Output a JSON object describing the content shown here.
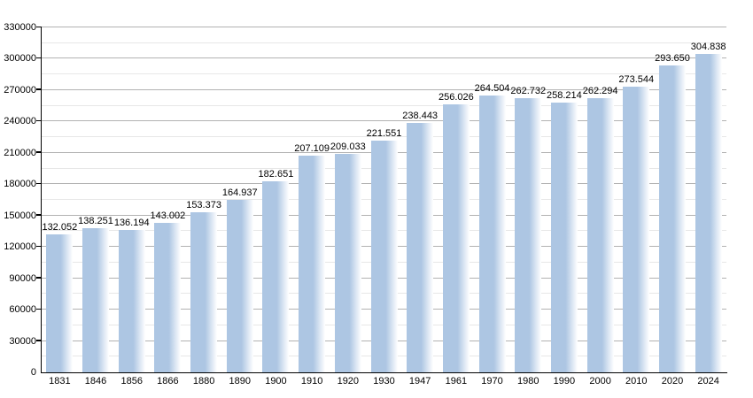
{
  "chart_data": {
    "type": "bar",
    "title": "",
    "xlabel": "",
    "ylabel": "",
    "categories": [
      "1831",
      "1846",
      "1856",
      "1866",
      "1880",
      "1890",
      "1900",
      "1910",
      "1920",
      "1930",
      "1947",
      "1961",
      "1970",
      "1980",
      "1990",
      "2000",
      "2010",
      "2020",
      "2024"
    ],
    "values": [
      132052,
      138251,
      136194,
      143002,
      153373,
      164937,
      182651,
      207109,
      209033,
      221551,
      238443,
      256026,
      264504,
      262732,
      258214,
      262294,
      273544,
      293650,
      304838
    ],
    "value_labels": [
      "132.052",
      "138.251",
      "136.194",
      "143.002",
      "153.373",
      "164.937",
      "182.651",
      "207.109",
      "209.033",
      "221.551",
      "238.443",
      "256.026",
      "264.504",
      "262.732",
      "258.214",
      "262.294",
      "273.544",
      "293.650",
      "304.838"
    ],
    "ylim": [
      0,
      330000
    ],
    "y_major_step": 30000,
    "y_minor_step": 15000,
    "y_tick_labels": [
      "0",
      "30000",
      "60000",
      "90000",
      "120000",
      "150000",
      "180000",
      "210000",
      "240000",
      "270000",
      "300000",
      "330000"
    ],
    "grid": true,
    "legend_position": "none",
    "colors": {
      "bar": "#adc6e3",
      "bar_fade": "#ffffff",
      "grid_major": "#b2b2b2",
      "grid_minor": "#e7e7e7",
      "axis": "#000000",
      "text": "#000000",
      "background": "#ffffff"
    }
  }
}
